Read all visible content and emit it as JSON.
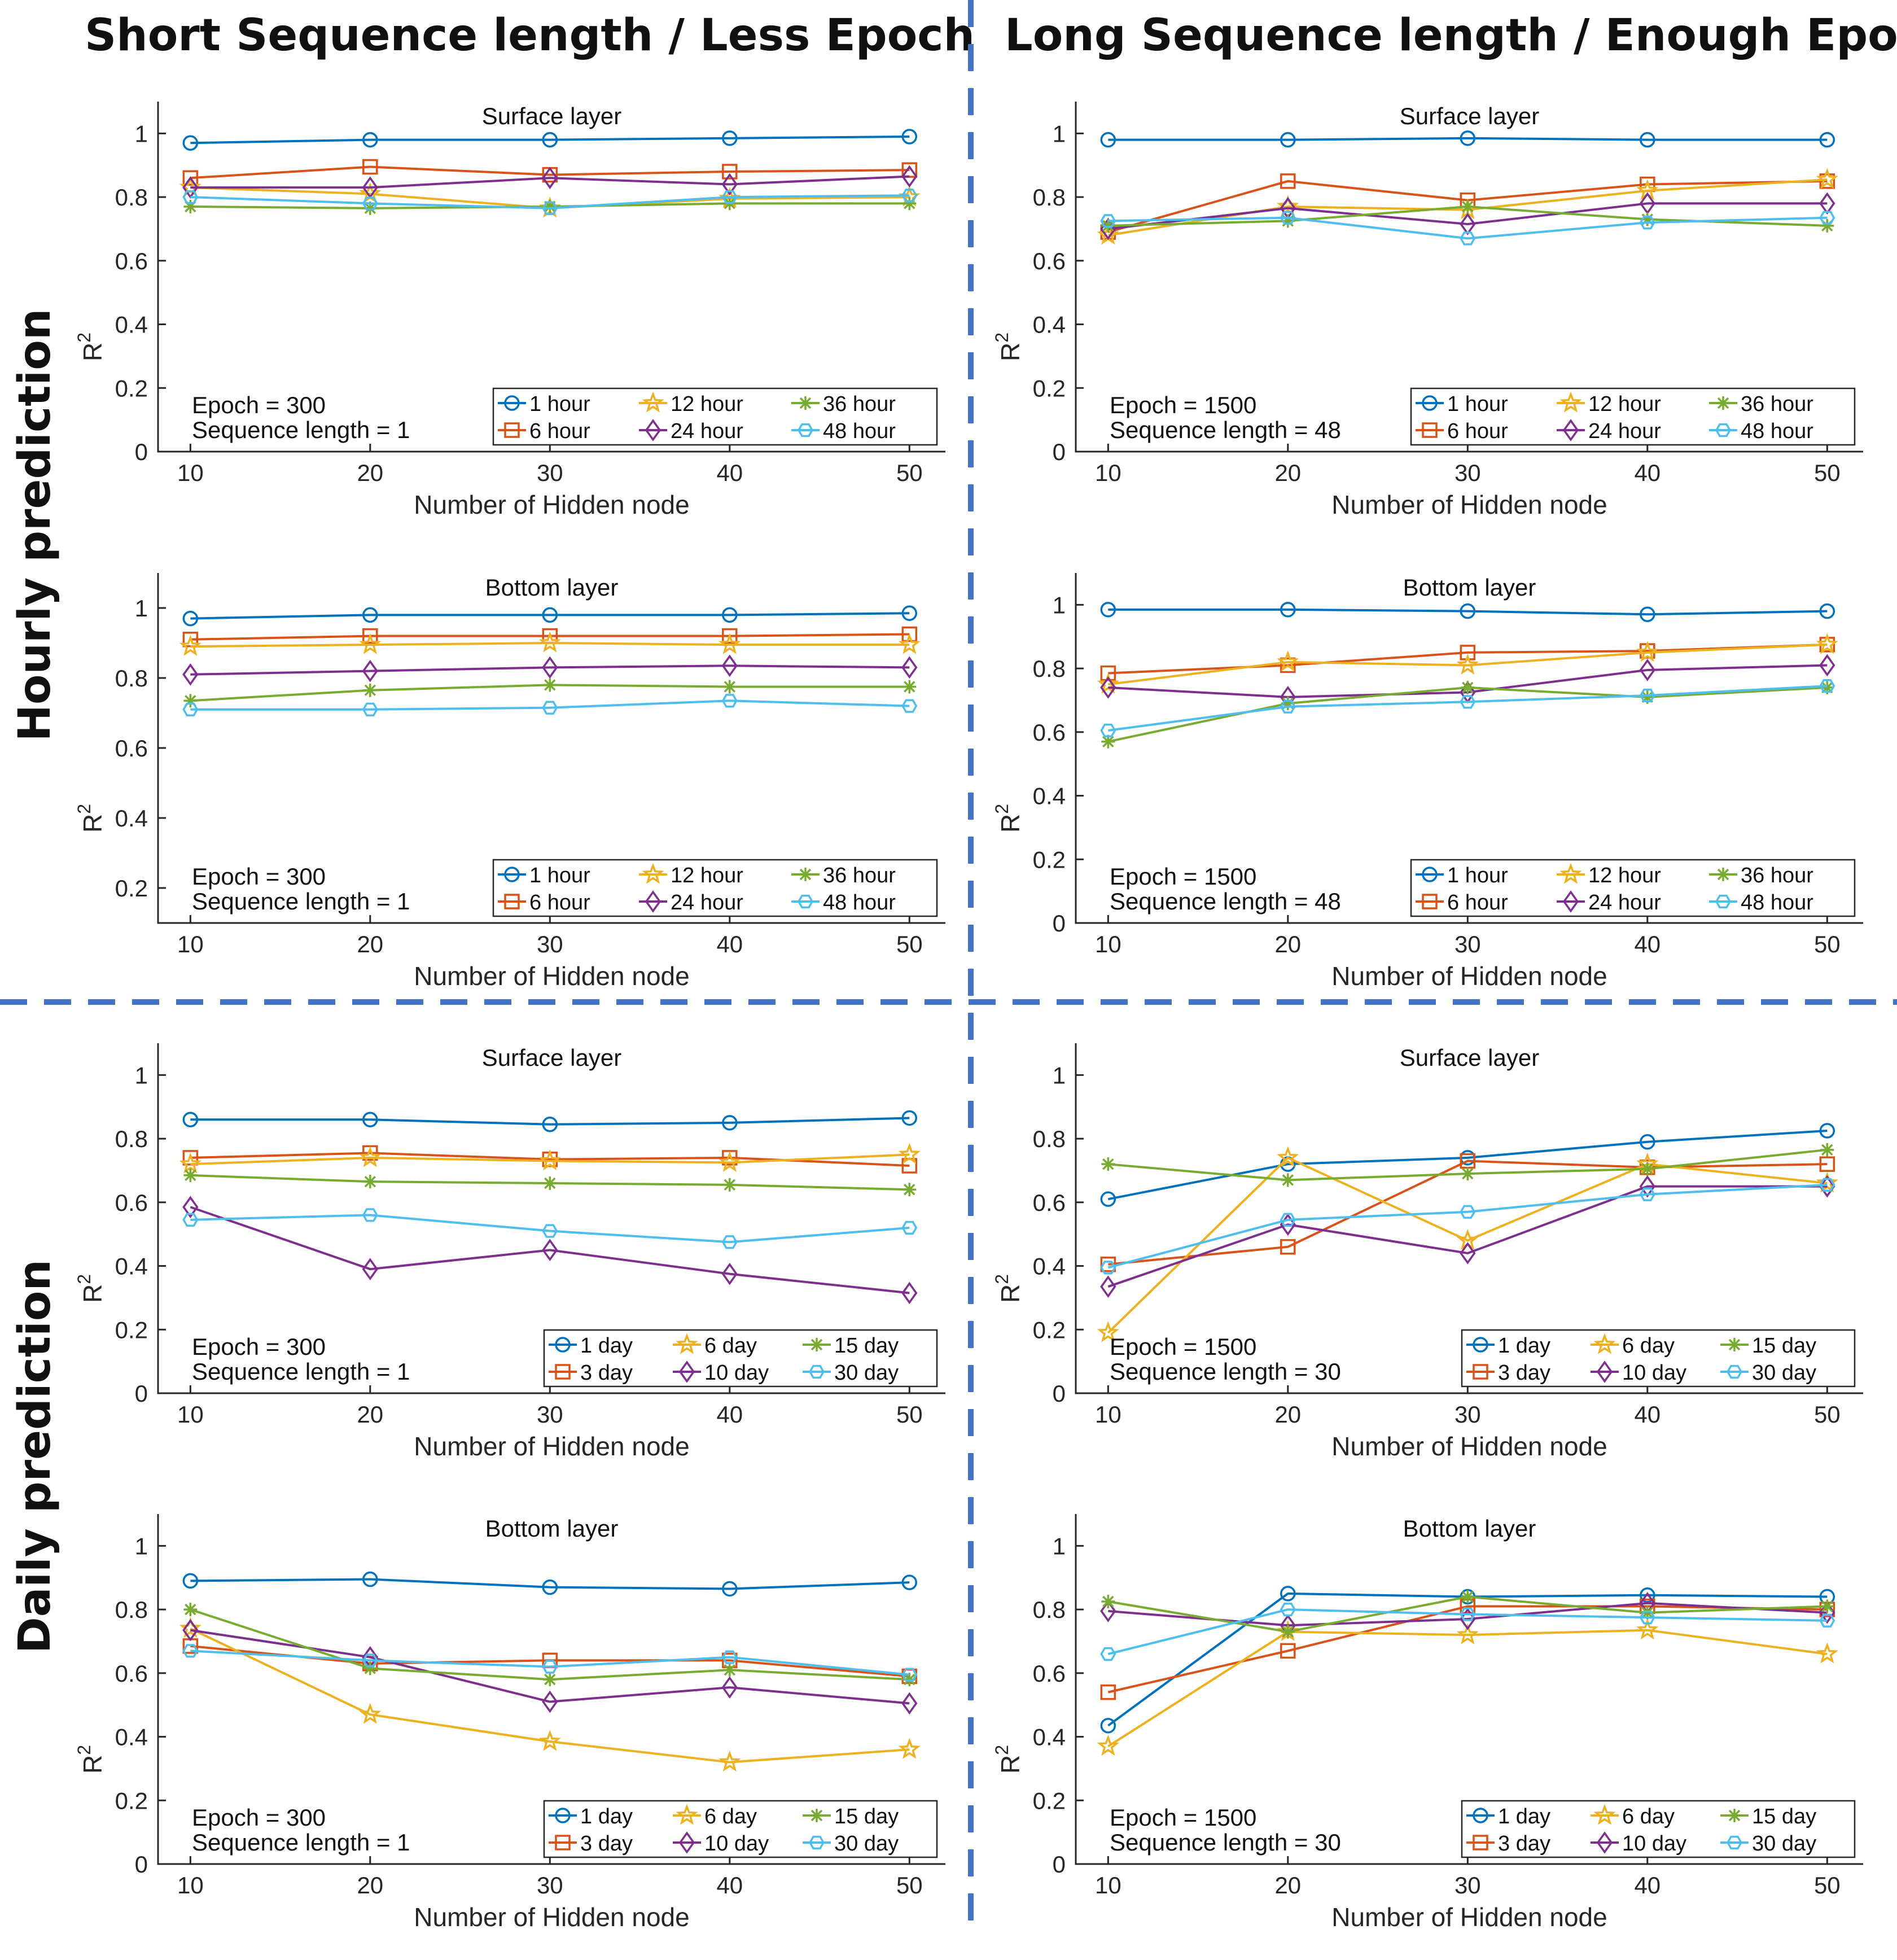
{
  "headers": {
    "col_left": "Short Sequence length / Less Epoch",
    "col_right": "Long Sequence length / Enough Epoch",
    "row_top": "Hourly prediction",
    "row_bottom": "Daily prediction"
  },
  "series_colors": [
    "#0072BD",
    "#D95319",
    "#EDB120",
    "#7E2F8E",
    "#77AC30",
    "#4DBEEE"
  ],
  "chart_data": [
    {
      "type": "line",
      "title": "Surface layer",
      "xlabel": "Number of Hidden node",
      "ylabel": "R",
      "x": [
        10,
        20,
        30,
        40,
        50
      ],
      "ylim": [
        0,
        1.1
      ],
      "yticks": [
        "0",
        "0.2",
        "0.4",
        "0.6",
        "0.8",
        "1"
      ],
      "annotation": [
        "Epoch = 300",
        "Sequence length = 1"
      ],
      "series": [
        {
          "name": "1 hour",
          "marker": "o",
          "values": [
            0.97,
            0.98,
            0.98,
            0.985,
            0.99
          ]
        },
        {
          "name": "6 hour",
          "marker": "s",
          "values": [
            0.86,
            0.895,
            0.87,
            0.88,
            0.885
          ]
        },
        {
          "name": "12 hour",
          "marker": "star",
          "values": [
            0.83,
            0.81,
            0.765,
            0.795,
            0.8
          ]
        },
        {
          "name": "24 hour",
          "marker": "d",
          "values": [
            0.83,
            0.83,
            0.86,
            0.84,
            0.865
          ]
        },
        {
          "name": "36 hour",
          "marker": "asterisk",
          "values": [
            0.77,
            0.765,
            0.77,
            0.78,
            0.78
          ]
        },
        {
          "name": "48 hour",
          "marker": "hex",
          "values": [
            0.8,
            0.78,
            0.765,
            0.8,
            0.805
          ]
        }
      ]
    },
    {
      "type": "line",
      "title": "Surface layer",
      "xlabel": "Number of Hidden node",
      "ylabel": "R",
      "x": [
        10,
        20,
        30,
        40,
        50
      ],
      "ylim": [
        0,
        1.1
      ],
      "yticks": [
        "0",
        "0.2",
        "0.4",
        "0.6",
        "0.8",
        "1"
      ],
      "annotation": [
        "Epoch = 1500",
        "Sequence length = 48"
      ],
      "series": [
        {
          "name": "1 hour",
          "marker": "o",
          "values": [
            0.98,
            0.98,
            0.985,
            0.98,
            0.98
          ]
        },
        {
          "name": "6 hour",
          "marker": "s",
          "values": [
            0.69,
            0.85,
            0.79,
            0.84,
            0.85
          ]
        },
        {
          "name": "12 hour",
          "marker": "star",
          "values": [
            0.68,
            0.77,
            0.76,
            0.82,
            0.855
          ]
        },
        {
          "name": "24 hour",
          "marker": "d",
          "values": [
            0.7,
            0.765,
            0.715,
            0.78,
            0.78
          ]
        },
        {
          "name": "36 hour",
          "marker": "asterisk",
          "values": [
            0.71,
            0.725,
            0.77,
            0.73,
            0.71
          ]
        },
        {
          "name": "48 hour",
          "marker": "hex",
          "values": [
            0.725,
            0.735,
            0.67,
            0.72,
            0.735
          ]
        }
      ]
    },
    {
      "type": "line",
      "title": "Bottom layer",
      "xlabel": "Number of Hidden node",
      "ylabel": "R",
      "x": [
        10,
        20,
        30,
        40,
        50
      ],
      "ylim": [
        0.1,
        1.1
      ],
      "yticks": [
        "0.2",
        "0.4",
        "0.6",
        "0.8",
        "1"
      ],
      "annotation": [
        "Epoch = 300",
        "Sequence length = 1"
      ],
      "series": [
        {
          "name": "1 hour",
          "marker": "o",
          "values": [
            0.97,
            0.98,
            0.98,
            0.98,
            0.985
          ]
        },
        {
          "name": "6 hour",
          "marker": "s",
          "values": [
            0.91,
            0.92,
            0.92,
            0.92,
            0.925
          ]
        },
        {
          "name": "12 hour",
          "marker": "star",
          "values": [
            0.89,
            0.895,
            0.9,
            0.895,
            0.895
          ]
        },
        {
          "name": "24 hour",
          "marker": "d",
          "values": [
            0.81,
            0.82,
            0.83,
            0.835,
            0.83
          ]
        },
        {
          "name": "36 hour",
          "marker": "asterisk",
          "values": [
            0.735,
            0.765,
            0.78,
            0.775,
            0.775
          ]
        },
        {
          "name": "48 hour",
          "marker": "hex",
          "values": [
            0.71,
            0.71,
            0.715,
            0.735,
            0.72
          ]
        }
      ]
    },
    {
      "type": "line",
      "title": "Bottom layer",
      "xlabel": "Number of Hidden node",
      "ylabel": "R",
      "x": [
        10,
        20,
        30,
        40,
        50
      ],
      "ylim": [
        0,
        1.1
      ],
      "yticks": [
        "0",
        "0.2",
        "0.4",
        "0.6",
        "0.8",
        "1"
      ],
      "annotation": [
        "Epoch = 1500",
        "Sequence length = 48"
      ],
      "series": [
        {
          "name": "1 hour",
          "marker": "o",
          "values": [
            0.985,
            0.985,
            0.98,
            0.97,
            0.98
          ]
        },
        {
          "name": "6 hour",
          "marker": "s",
          "values": [
            0.785,
            0.81,
            0.85,
            0.855,
            0.875
          ]
        },
        {
          "name": "12 hour",
          "marker": "star",
          "values": [
            0.75,
            0.82,
            0.81,
            0.85,
            0.875
          ]
        },
        {
          "name": "24 hour",
          "marker": "d",
          "values": [
            0.74,
            0.71,
            0.725,
            0.795,
            0.81
          ]
        },
        {
          "name": "36 hour",
          "marker": "asterisk",
          "values": [
            0.57,
            0.69,
            0.74,
            0.71,
            0.74
          ]
        },
        {
          "name": "48 hour",
          "marker": "hex",
          "values": [
            0.605,
            0.68,
            0.695,
            0.715,
            0.745
          ]
        }
      ]
    },
    {
      "type": "line",
      "title": "Surface layer",
      "xlabel": "Number of Hidden node",
      "ylabel": "R",
      "x": [
        10,
        20,
        30,
        40,
        50
      ],
      "ylim": [
        0,
        1.1
      ],
      "yticks": [
        "0",
        "0.2",
        "0.4",
        "0.6",
        "0.8",
        "1"
      ],
      "annotation": [
        "Epoch = 300",
        "Sequence length = 1"
      ],
      "series": [
        {
          "name": "1 day",
          "marker": "o",
          "values": [
            0.86,
            0.86,
            0.845,
            0.85,
            0.865
          ]
        },
        {
          "name": "3 day",
          "marker": "s",
          "values": [
            0.74,
            0.755,
            0.735,
            0.74,
            0.715
          ]
        },
        {
          "name": "6 day",
          "marker": "star",
          "values": [
            0.72,
            0.74,
            0.73,
            0.725,
            0.75
          ]
        },
        {
          "name": "10 day",
          "marker": "d",
          "values": [
            0.585,
            0.39,
            0.45,
            0.375,
            0.315
          ]
        },
        {
          "name": "15 day",
          "marker": "asterisk",
          "values": [
            0.685,
            0.665,
            0.66,
            0.655,
            0.64
          ]
        },
        {
          "name": "30 day",
          "marker": "hex",
          "values": [
            0.545,
            0.56,
            0.51,
            0.475,
            0.52
          ]
        }
      ]
    },
    {
      "type": "line",
      "title": "Surface layer",
      "xlabel": "Number of Hidden node",
      "ylabel": "R",
      "x": [
        10,
        20,
        30,
        40,
        50
      ],
      "ylim": [
        0,
        1.1
      ],
      "yticks": [
        "0",
        "0.2",
        "0.4",
        "0.6",
        "0.8",
        "1"
      ],
      "annotation": [
        "Epoch = 1500",
        "Sequence length = 30"
      ],
      "series": [
        {
          "name": "1 day",
          "marker": "o",
          "values": [
            0.61,
            0.72,
            0.74,
            0.79,
            0.825
          ]
        },
        {
          "name": "3 day",
          "marker": "s",
          "values": [
            0.405,
            0.46,
            0.73,
            0.71,
            0.72
          ]
        },
        {
          "name": "6 day",
          "marker": "star",
          "values": [
            0.19,
            0.74,
            0.48,
            0.72,
            0.66
          ]
        },
        {
          "name": "10 day",
          "marker": "d",
          "values": [
            0.335,
            0.53,
            0.44,
            0.65,
            0.65
          ]
        },
        {
          "name": "15 day",
          "marker": "asterisk",
          "values": [
            0.72,
            0.67,
            0.69,
            0.705,
            0.765
          ]
        },
        {
          "name": "30 day",
          "marker": "hex",
          "values": [
            0.395,
            0.545,
            0.57,
            0.625,
            0.655
          ]
        }
      ]
    },
    {
      "type": "line",
      "title": "Bottom layer",
      "xlabel": "Number of Hidden node",
      "ylabel": "R",
      "x": [
        10,
        20,
        30,
        40,
        50
      ],
      "ylim": [
        0,
        1.1
      ],
      "yticks": [
        "0",
        "0.2",
        "0.4",
        "0.6",
        "0.8",
        "1"
      ],
      "annotation": [
        "Epoch = 300",
        "Sequence length = 1"
      ],
      "series": [
        {
          "name": "1 day",
          "marker": "o",
          "values": [
            0.89,
            0.895,
            0.87,
            0.865,
            0.885
          ]
        },
        {
          "name": "3 day",
          "marker": "s",
          "values": [
            0.685,
            0.63,
            0.64,
            0.64,
            0.59
          ]
        },
        {
          "name": "6 day",
          "marker": "star",
          "values": [
            0.74,
            0.47,
            0.385,
            0.32,
            0.36
          ]
        },
        {
          "name": "10 day",
          "marker": "d",
          "values": [
            0.735,
            0.65,
            0.51,
            0.555,
            0.505
          ]
        },
        {
          "name": "15 day",
          "marker": "asterisk",
          "values": [
            0.8,
            0.615,
            0.58,
            0.61,
            0.58
          ]
        },
        {
          "name": "30 day",
          "marker": "hex",
          "values": [
            0.67,
            0.64,
            0.62,
            0.65,
            0.595
          ]
        }
      ]
    },
    {
      "type": "line",
      "title": "Bottom layer",
      "xlabel": "Number of Hidden node",
      "ylabel": "R",
      "x": [
        10,
        20,
        30,
        40,
        50
      ],
      "ylim": [
        0,
        1.1
      ],
      "yticks": [
        "0",
        "0.2",
        "0.4",
        "0.6",
        "0.8",
        "1"
      ],
      "annotation": [
        "Epoch = 1500",
        "Sequence length = 30"
      ],
      "series": [
        {
          "name": "1 day",
          "marker": "o",
          "values": [
            0.435,
            0.85,
            0.84,
            0.845,
            0.84
          ]
        },
        {
          "name": "3 day",
          "marker": "s",
          "values": [
            0.54,
            0.67,
            0.81,
            0.81,
            0.8
          ]
        },
        {
          "name": "6 day",
          "marker": "star",
          "values": [
            0.37,
            0.73,
            0.72,
            0.735,
            0.66
          ]
        },
        {
          "name": "10 day",
          "marker": "d",
          "values": [
            0.795,
            0.75,
            0.77,
            0.82,
            0.79
          ]
        },
        {
          "name": "15 day",
          "marker": "asterisk",
          "values": [
            0.825,
            0.73,
            0.84,
            0.79,
            0.81
          ]
        },
        {
          "name": "30 day",
          "marker": "hex",
          "values": [
            0.66,
            0.8,
            0.785,
            0.775,
            0.765
          ]
        }
      ]
    }
  ]
}
